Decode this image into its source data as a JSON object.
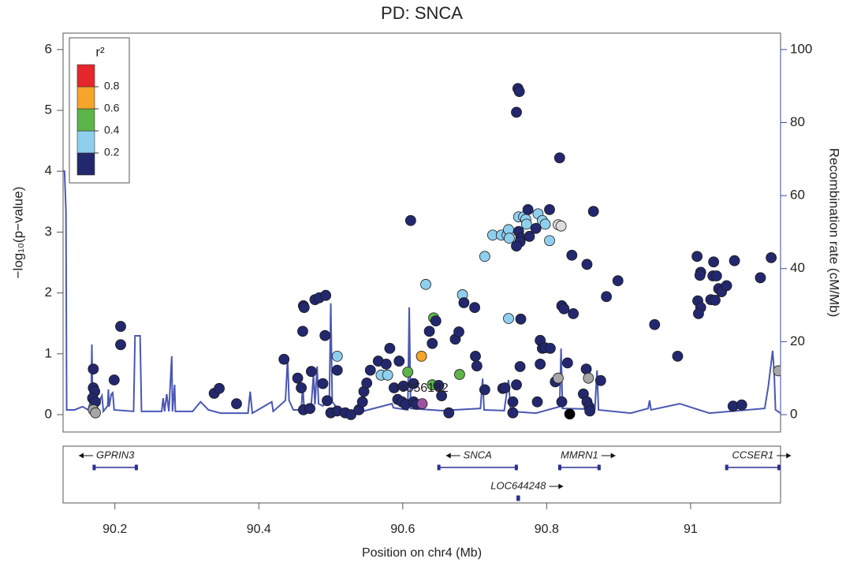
{
  "chart_data": {
    "type": "locuszoom",
    "title": "PD: SNCA",
    "xlabel": "Position on chr4 (Mb)",
    "ylabel": "−log₁₀(p−value)",
    "y2label": "Recombination rate (cM/Mb)",
    "xlim": [
      90.128,
      91.125
    ],
    "xticks": [
      90.2,
      90.4,
      90.6,
      90.8,
      91
    ],
    "ylim": [
      -0.285,
      6.27
    ],
    "yticks": [
      0,
      1,
      2,
      3,
      4,
      5,
      6
    ],
    "y2lim": [
      -4.75,
      104.5
    ],
    "y2ticks": [
      0,
      20,
      40,
      60,
      80,
      100
    ],
    "y2color": "#3a48a6",
    "colorbar": {
      "title": "r²",
      "range": [
        0,
        1
      ],
      "ticks": [
        0.2,
        0.4,
        0.6,
        0.8
      ],
      "colors": [
        "#23286e",
        "#8fcfee",
        "#5bb548",
        "#f5a52a",
        "#e5262b"
      ]
    },
    "points": {
      "x": [
        90.17,
        90.17,
        90.172,
        90.169,
        90.173,
        90.17,
        90.173,
        90.208,
        90.208,
        90.199,
        90.338,
        90.345,
        90.369,
        90.435,
        90.462,
        90.463,
        90.461,
        90.478,
        90.484,
        90.493,
        90.492,
        90.473,
        90.454,
        90.459,
        90.462,
        90.471,
        90.489,
        90.495,
        90.5,
        90.509,
        90.509,
        90.509,
        90.52,
        90.528,
        90.539,
        90.544,
        90.546,
        90.55,
        90.555,
        90.566,
        90.582,
        90.577,
        90.57,
        90.579,
        90.595,
        90.588,
        90.593,
        90.599,
        90.601,
        90.604,
        90.607,
        90.611,
        90.615,
        90.615,
        90.619,
        90.626,
        90.627,
        90.632,
        90.637,
        90.641,
        90.643,
        90.646,
        90.641,
        90.65,
        90.654,
        90.664,
        90.673,
        90.678,
        90.679,
        90.683,
        90.685,
        90.7,
        90.701,
        90.703,
        90.714,
        90.714,
        90.725,
        90.737,
        90.745,
        90.747,
        90.748,
        90.747,
        90.739,
        90.742,
        90.753,
        90.753,
        90.758,
        90.76,
        90.762,
        90.764,
        90.758,
        90.763,
        90.761,
        90.764,
        90.763,
        90.758,
        90.761,
        90.768,
        90.771,
        90.772,
        90.774,
        90.776,
        90.785,
        90.787,
        90.791,
        90.794,
        90.798,
        90.805,
        90.791,
        90.788,
        90.794,
        90.798,
        90.804,
        90.804,
        90.812,
        90.818,
        90.816,
        90.82,
        90.816,
        90.821,
        90.824,
        90.821,
        90.829,
        90.835,
        90.837,
        90.851,
        90.856,
        90.855,
        90.856,
        90.858,
        90.859,
        90.86,
        90.865,
        90.875,
        90.883,
        90.899,
        90.95,
        90.982,
        91.009,
        91.014,
        91.013,
        91.01,
        91.014,
        91.011,
        91.032,
        91.031,
        91.036,
        91.028,
        91.034,
        91.039,
        91.043,
        91.05,
        91.061,
        91.059,
        91.071,
        91.097,
        91.112,
        91.122,
        90.832
      ],
      "values": [
        0.75,
        0.44,
        0.38,
        0.27,
        0.21,
        0.08,
        0.03,
        1.45,
        1.15,
        0.57,
        0.35,
        0.43,
        0.18,
        0.91,
        1.79,
        1.76,
        1.37,
        1.89,
        1.92,
        1.96,
        1.3,
        0.71,
        0.6,
        0.44,
        0.08,
        0.1,
        0.51,
        0.23,
        0.03,
        0.96,
        0.73,
        0.06,
        0.03,
        0,
        0.08,
        0.21,
        0.38,
        0.52,
        0.73,
        0.88,
        1.09,
        0.83,
        0.65,
        0.65,
        0.88,
        0.44,
        0.25,
        0.21,
        0.47,
        0.17,
        0.7,
        3.19,
        0.51,
        0.21,
        0.17,
        0.96,
        0.18,
        2.14,
        1.37,
        1.17,
        1.59,
        1.54,
        0.49,
        0.48,
        0.31,
        0.03,
        1.24,
        1.36,
        0.66,
        1.97,
        1.84,
        1.76,
        0.96,
        0.8,
        0.41,
        2.6,
        2.95,
        2.95,
        2.95,
        3.04,
        2.9,
        1.58,
        0.43,
        0.44,
        0.21,
        0.03,
        4.97,
        5.36,
        5.31,
        1.57,
        0.49,
        0.79,
        3.01,
        2.9,
        2.84,
        2.77,
        3.25,
        3.25,
        3.21,
        3.13,
        3.37,
        2.93,
        3.06,
        0.21,
        1.22,
        1.09,
        1.1,
        1.09,
        0.83,
        3.3,
        3.19,
        3.13,
        3.37,
        2.86,
        0.54,
        4.22,
        3.12,
        3.1,
        0.6,
        1.79,
        1.74,
        0.21,
        0.85,
        2.62,
        1.66,
        0.34,
        2.47,
        0.75,
        0.21,
        0.6,
        0.13,
        0.06,
        3.34,
        0.56,
        1.94,
        2.2,
        1.48,
        0.96,
        2.6,
        2.34,
        2.29,
        1.87,
        1.76,
        1.66,
        2.51,
        2.28,
        2.28,
        1.89,
        1.88,
        2.07,
        2.02,
        2.12,
        2.53,
        0.14,
        0.16,
        2.25,
        2.58,
        0.72,
        0.01
      ],
      "colors": [
        "#23286e",
        "#23286e",
        "#23286e",
        "#23286e",
        "#23286e",
        "#a6a6a6",
        "#a6a6a6",
        "#23286e",
        "#23286e",
        "#23286e",
        "#23286e",
        "#23286e",
        "#23286e",
        "#23286e",
        "#23286e",
        "#23286e",
        "#23286e",
        "#23286e",
        "#23286e",
        "#23286e",
        "#23286e",
        "#23286e",
        "#23286e",
        "#23286e",
        "#23286e",
        "#23286e",
        "#23286e",
        "#23286e",
        "#23286e",
        "#8fcfee",
        "#23286e",
        "#23286e",
        "#23286e",
        "#23286e",
        "#23286e",
        "#23286e",
        "#23286e",
        "#23286e",
        "#23286e",
        "#23286e",
        "#23286e",
        "#23286e",
        "#8fcfee",
        "#8fcfee",
        "#23286e",
        "#23286e",
        "#23286e",
        "#23286e",
        "#23286e",
        "#23286e",
        "#5bb548",
        "#23286e",
        "#23286e",
        "#23286e",
        "#23286e",
        "#f5a52a",
        "#9a52a1",
        "#8fcfee",
        "#23286e",
        "#23286e",
        "#5bb548",
        "#23286e",
        "#5bb548",
        "#23286e",
        "#23286e",
        "#23286e",
        "#23286e",
        "#23286e",
        "#5bb548",
        "#8fcfee",
        "#23286e",
        "#23286e",
        "#23286e",
        "#23286e",
        "#23286e",
        "#8fcfee",
        "#8fcfee",
        "#8fcfee",
        "#8fcfee",
        "#8fcfee",
        "#8fcfee",
        "#8fcfee",
        "#23286e",
        "#23286e",
        "#23286e",
        "#23286e",
        "#23286e",
        "#23286e",
        "#23286e",
        "#23286e",
        "#23286e",
        "#23286e",
        "#23286e",
        "#23286e",
        "#23286e",
        "#23286e",
        "#8fcfee",
        "#8fcfee",
        "#8fcfee",
        "#8fcfee",
        "#23286e",
        "#23286e",
        "#23286e",
        "#23286e",
        "#23286e",
        "#23286e",
        "#23286e",
        "#23286e",
        "#23286e",
        "#8fcfee",
        "#8fcfee",
        "#8fcfee",
        "#23286e",
        "#8fcfee",
        "#23286e",
        "#23286e",
        "#dcdcdc",
        "#dcdcdc",
        "#a6a6a6",
        "#23286e",
        "#23286e",
        "#23286e",
        "#23286e",
        "#23286e",
        "#23286e",
        "#23286e",
        "#23286e",
        "#23286e",
        "#23286e",
        "#a6a6a6",
        "#23286e",
        "#23286e",
        "#23286e",
        "#23286e",
        "#23286e",
        "#23286e",
        "#23286e",
        "#23286e",
        "#23286e",
        "#23286e",
        "#23286e",
        "#23286e",
        "#23286e",
        "#23286e",
        "#23286e",
        "#23286e",
        "#23286e",
        "#23286e",
        "#23286e",
        "#23286e",
        "#23286e",
        "#23286e",
        "#23286e",
        "#23286e",
        "#23286e",
        "#23286e",
        "#23286e",
        "#a6a6a6"
      ]
    },
    "annotation": {
      "text": "rs356182",
      "x": 90.627,
      "y": 0.43
    },
    "recombination": {
      "axis": "y2",
      "color": "#4a57b3",
      "x": [
        90.128,
        90.13,
        90.132,
        90.133,
        90.144,
        90.155,
        90.163,
        90.167,
        90.168,
        90.169,
        90.172,
        90.177,
        90.182,
        90.184,
        90.19,
        90.191,
        90.192,
        90.195,
        90.197,
        90.199,
        90.226,
        90.228,
        90.235,
        90.237,
        90.265,
        90.267,
        90.269,
        90.272,
        90.275,
        90.279,
        90.28,
        90.283,
        90.284,
        90.308,
        90.319,
        90.33,
        90.347,
        90.385,
        90.388,
        90.391,
        90.418,
        90.42,
        90.437,
        90.44,
        90.442,
        90.448,
        90.459,
        90.461,
        90.463,
        90.473,
        90.476,
        90.478,
        90.481,
        90.483,
        90.489,
        90.498,
        90.5,
        90.502,
        90.511,
        90.544,
        90.585,
        90.587,
        90.607,
        90.609,
        90.611,
        90.654,
        90.708,
        90.711,
        90.713,
        90.741,
        90.747,
        90.75,
        90.785,
        90.818,
        90.82,
        90.822,
        90.867,
        90.87,
        90.872,
        90.917,
        90.941,
        90.943,
        90.945,
        90.985,
        91.026,
        91.103,
        91.108,
        91.114,
        91.116,
        91.118,
        91.125
      ],
      "values": [
        66.7,
        66.7,
        55.7,
        1.3,
        1.3,
        2.2,
        1.3,
        4.5,
        19.2,
        4.5,
        1.3,
        3.0,
        5.2,
        0.9,
        2.4,
        6.9,
        2.2,
        5.6,
        6.0,
        1.3,
        0.9,
        21.6,
        21.6,
        0.9,
        0.9,
        4.5,
        0.9,
        5.6,
        0.9,
        16.0,
        0.9,
        8.2,
        0.9,
        0.9,
        3.5,
        1.3,
        0.4,
        0.4,
        6.3,
        0.4,
        3.5,
        0.9,
        3.9,
        15.3,
        3.9,
        1.3,
        1.3,
        8.2,
        1.3,
        3.0,
        11.0,
        2.8,
        13.2,
        3.0,
        2.4,
        4.1,
        30.5,
        3.5,
        1.3,
        0.9,
        3.0,
        1.9,
        1.3,
        29.4,
        1.7,
        1.1,
        1.7,
        9.9,
        1.3,
        1.1,
        9.5,
        0.9,
        0.4,
        2.2,
        18.1,
        1.7,
        1.5,
        12.1,
        1.3,
        0.4,
        1.7,
        3.9,
        1.3,
        3.0,
        0.4,
        1.7,
        7.8,
        17.5,
        12.1,
        1.3,
        0.4
      ]
    },
    "genes": [
      {
        "name": "GPRIN3",
        "start": 90.169,
        "end": 90.232,
        "strand": "-"
      },
      {
        "name": "SNCA",
        "start": 90.648,
        "end": 90.76,
        "strand": "-"
      },
      {
        "name": "MMRN1",
        "start": 90.816,
        "end": 90.875,
        "strand": "+"
      },
      {
        "name": "LOC644248",
        "start": 90.758,
        "end": 90.763,
        "strand": "+"
      },
      {
        "name": "CCSER1",
        "start": 91.048,
        "end": 91.125,
        "strand": "+"
      }
    ],
    "gene_color": "#2b3190"
  }
}
